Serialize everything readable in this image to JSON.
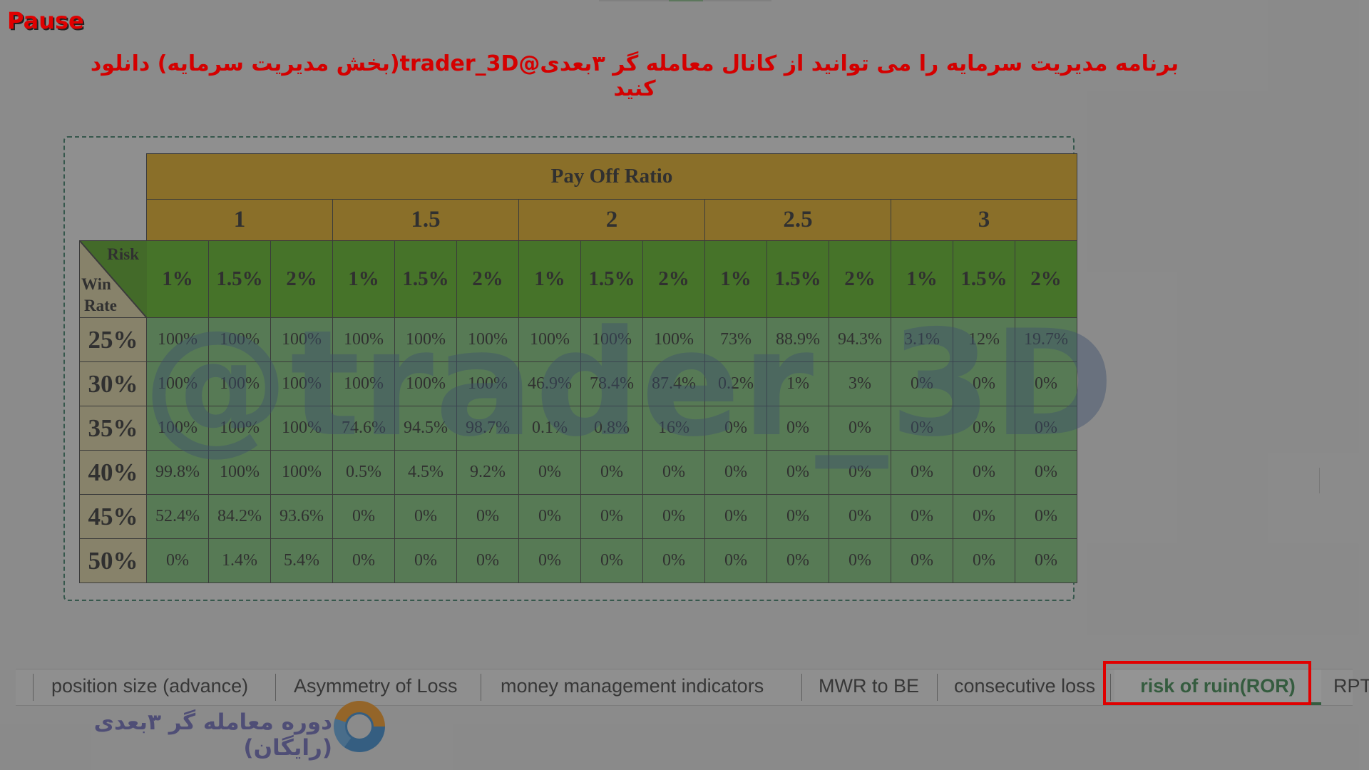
{
  "overlay": {
    "pause_label": "Pause"
  },
  "banner": {
    "text": "برنامه مدیریت سرمایه را می توانید از کانال معامله گر ۳بعدی@trader_3D(بخش مدیریت سرمایه) دانلود کنید"
  },
  "watermark": {
    "text": "@trader_3D"
  },
  "table": {
    "title": "Pay Off Ratio",
    "ratios": [
      "1",
      "1.5",
      "2",
      "2.5",
      "3"
    ],
    "risks": [
      "1%",
      "1.5%",
      "2%"
    ],
    "corner": {
      "risk": "Risk",
      "win": "Win",
      "rate": "Rate"
    },
    "rows": [
      {
        "win_rate": "25%",
        "values": [
          "100%",
          "100%",
          "100%",
          "100%",
          "100%",
          "100%",
          "100%",
          "100%",
          "100%",
          "73%",
          "88.9%",
          "94.3%",
          "3.1%",
          "12%",
          "19.7%"
        ]
      },
      {
        "win_rate": "30%",
        "values": [
          "100%",
          "100%",
          "100%",
          "100%",
          "100%",
          "100%",
          "46.9%",
          "78.4%",
          "87.4%",
          "0.2%",
          "1%",
          "3%",
          "0%",
          "0%",
          "0%"
        ]
      },
      {
        "win_rate": "35%",
        "values": [
          "100%",
          "100%",
          "100%",
          "74.6%",
          "94.5%",
          "98.7%",
          "0.1%",
          "0.8%",
          "16%",
          "0%",
          "0%",
          "0%",
          "0%",
          "0%",
          "0%"
        ]
      },
      {
        "win_rate": "40%",
        "values": [
          "99.8%",
          "100%",
          "100%",
          "0.5%",
          "4.5%",
          "9.2%",
          "0%",
          "0%",
          "0%",
          "0%",
          "0%",
          "0%",
          "0%",
          "0%",
          "0%"
        ]
      },
      {
        "win_rate": "45%",
        "values": [
          "52.4%",
          "84.2%",
          "93.6%",
          "0%",
          "0%",
          "0%",
          "0%",
          "0%",
          "0%",
          "0%",
          "0%",
          "0%",
          "0%",
          "0%",
          "0%"
        ]
      },
      {
        "win_rate": "50%",
        "values": [
          "0%",
          "1.4%",
          "5.4%",
          "0%",
          "0%",
          "0%",
          "0%",
          "0%",
          "0%",
          "0%",
          "0%",
          "0%",
          "0%",
          "0%",
          "0%"
        ]
      }
    ]
  },
  "tabs": {
    "items": [
      "position size (advance)",
      "Asymmetry of Loss",
      "money management indicators",
      "MWR to BE",
      "consecutive loss"
    ],
    "active": "risk of ruin(ROR)",
    "overflow": "RPT"
  },
  "footer": {
    "course_text": "دوره معامله گر ۳بعدی (رایگان)"
  },
  "colors": {
    "header": "#e8a600",
    "risk_header": "#47b000",
    "cell": "#6fc26a",
    "win_rate": "#e0d39c",
    "highlight": "#e00000",
    "active_tab": "#1e7b36"
  }
}
